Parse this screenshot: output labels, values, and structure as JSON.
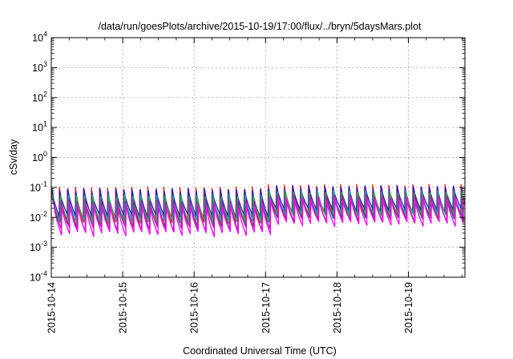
{
  "chart_data": {
    "type": "line",
    "title": "/data/run/goesPlots/archive/2015-10-19/17:00/flux/../bryn/5daysMars.plot",
    "xlabel": "Coordinated Universal Time (UTC)",
    "ylabel": "cSv/day",
    "y_scale": "log",
    "ylim": [
      0.0001,
      10000
    ],
    "xlim": [
      "2015-10-14T00:00",
      "2015-10-19T19:00"
    ],
    "x_ticks": [
      "2015-10-14",
      "2015-10-15",
      "2015-10-16",
      "2015-10-17",
      "2015-10-18",
      "2015-10-19"
    ],
    "y_ticks": [
      {
        "value": 0.0001,
        "base": "10",
        "exp": "-4"
      },
      {
        "value": 0.001,
        "base": "10",
        "exp": "-3"
      },
      {
        "value": 0.01,
        "base": "10",
        "exp": "-2"
      },
      {
        "value": 0.1,
        "base": "10",
        "exp": "-1"
      },
      {
        "value": 1,
        "base": "10",
        "exp": "0"
      },
      {
        "value": 10,
        "base": "10",
        "exp": "1"
      },
      {
        "value": 100,
        "base": "10",
        "exp": "2"
      },
      {
        "value": 1000,
        "base": "10",
        "exp": "3"
      },
      {
        "value": 10000,
        "base": "10",
        "exp": "4"
      }
    ],
    "grid": true,
    "legend": "none",
    "sawtooth_period_hours": 2.7,
    "series": [
      {
        "color": "#ff2020",
        "peak": [
          0.09,
          0.11
        ],
        "trough": [
          0.006,
          0.013
        ]
      },
      {
        "color": "#2020c0",
        "peak": [
          0.08,
          0.1
        ],
        "trough": [
          0.01,
          0.016
        ]
      },
      {
        "color": "#00b0c8",
        "peak": [
          0.05,
          0.07
        ],
        "trough": [
          0.007,
          0.011
        ]
      },
      {
        "color": "#30b030",
        "peak": [
          0.045,
          0.06
        ],
        "trough": [
          0.006,
          0.01
        ]
      },
      {
        "color": "#9c2090",
        "peak": [
          0.035,
          0.05
        ],
        "trough": [
          0.004,
          0.008
        ]
      },
      {
        "color": "#ff00ff",
        "peak": [
          0.025,
          0.04
        ],
        "trough": [
          0.0028,
          0.006
        ]
      }
    ]
  }
}
